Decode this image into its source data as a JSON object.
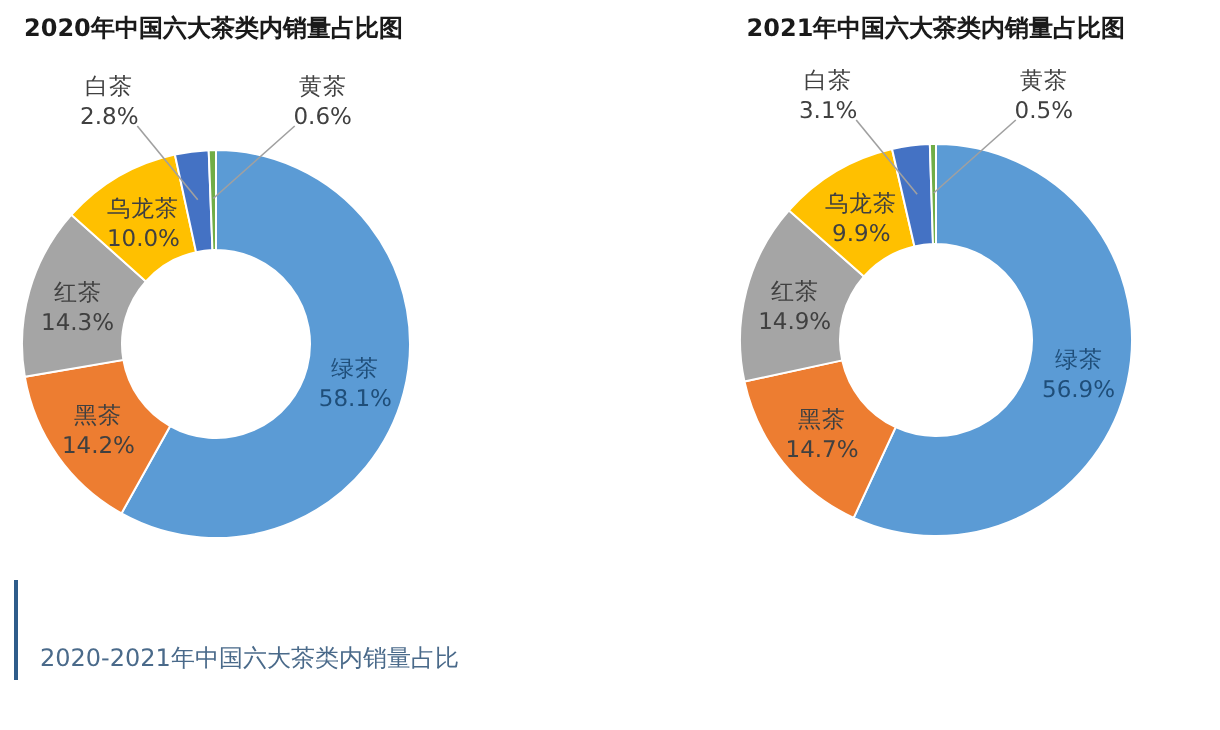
{
  "chart_data": [
    {
      "type": "donut",
      "title": "2020年中国六大茶类内销量占比图",
      "categories": [
        "绿茶",
        "黑茶",
        "红茶",
        "乌龙茶",
        "白茶",
        "黄茶"
      ],
      "values": [
        58.1,
        14.2,
        14.3,
        10.0,
        2.8,
        0.6
      ],
      "value_labels": [
        "58.1%",
        "14.2%",
        "14.3%",
        "10.0%",
        "2.8%",
        "0.6%"
      ],
      "colors": [
        "#5b9bd5",
        "#ed7d31",
        "#a5a5a5",
        "#ffc000",
        "#4472c4",
        "#70ad47"
      ]
    },
    {
      "type": "donut",
      "title": "2021年中国六大茶类内销量占比图",
      "categories": [
        "绿茶",
        "黑茶",
        "红茶",
        "乌龙茶",
        "白茶",
        "黄茶"
      ],
      "values": [
        56.9,
        14.7,
        14.9,
        9.9,
        3.1,
        0.5
      ],
      "value_labels": [
        "56.9%",
        "14.7%",
        "14.9%",
        "9.9%",
        "3.1%",
        "0.5%"
      ],
      "colors": [
        "#5b9bd5",
        "#ed7d31",
        "#a5a5a5",
        "#ffc000",
        "#4472c4",
        "#70ad47"
      ]
    },
    {
      "type": "other",
      "title": "2020-2021年中国六大茶类内销量占比"
    }
  ]
}
